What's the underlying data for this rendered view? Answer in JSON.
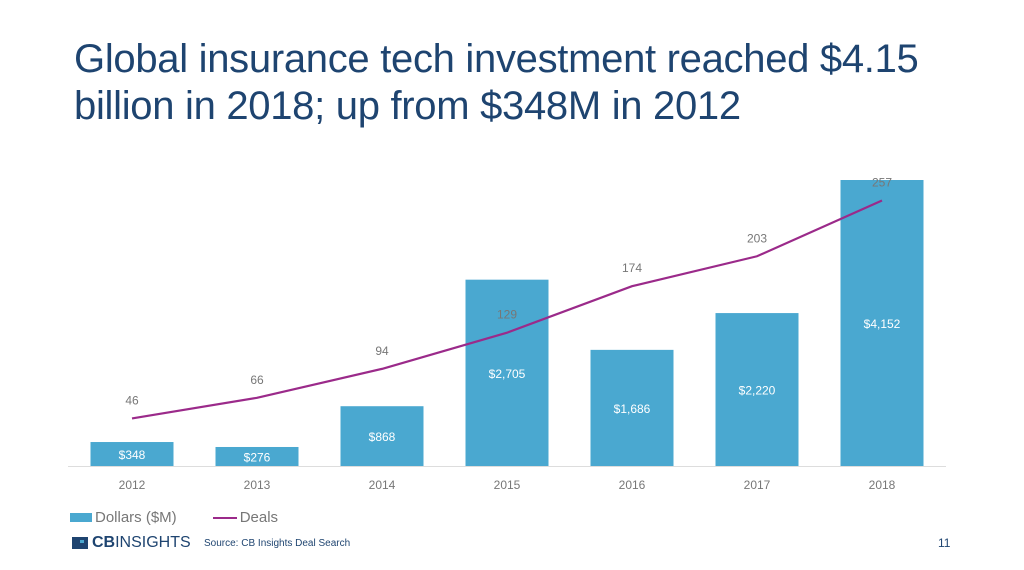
{
  "title": "Global insurance tech investment reached $4.15 billion in 2018; up from $348M in 2012",
  "chart_data": {
    "type": "bar",
    "categories": [
      "2012",
      "2013",
      "2014",
      "2015",
      "2016",
      "2017",
      "2018"
    ],
    "series": [
      {
        "name": "Dollars ($M)",
        "type": "bar",
        "values": [
          348,
          276,
          868,
          2705,
          1686,
          2220,
          4152
        ],
        "labels": [
          "$348",
          "$276",
          "$868",
          "$2,705",
          "$1,686",
          "$2,220",
          "$4,152"
        ],
        "color": "#4aa8d0"
      },
      {
        "name": "Deals",
        "type": "line",
        "values": [
          46,
          66,
          94,
          129,
          174,
          203,
          257
        ],
        "color": "#9b2a8a"
      }
    ],
    "grid": false,
    "legend": "bottom-left"
  },
  "legend": {
    "dollars": "Dollars ($M)",
    "deals": "Deals"
  },
  "footer": {
    "logo": "CBINSIGHTS",
    "logo_bold": "CB",
    "logo_rest": "INSIGHTS",
    "source": "Source: CB Insights Deal Search",
    "page": "11"
  }
}
